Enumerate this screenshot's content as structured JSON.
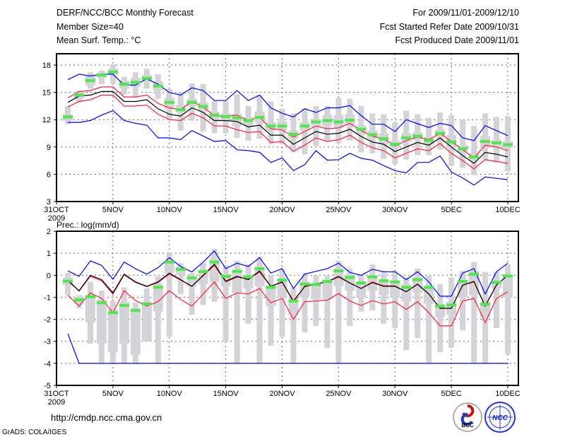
{
  "header": {
    "title": "DERF/NCC/BCC Monthly Forecast",
    "member_size": "Member Size=40",
    "temp_label": "Mean Surf. Temp.: °C",
    "for_range": "For 2009/11/01-2009/12/10",
    "started": "Fcst Started Refer Date 2009/10/31",
    "produced": "Fcst Produced Date 2009/11/01"
  },
  "footer": {
    "url": "http://cmdp.ncc.cma.gov.cn",
    "grads": "GrADS: COLA/IGES",
    "logo_bcc": "BCC",
    "logo_ncc": "NCC"
  },
  "colors": {
    "blue": "#0000ff",
    "red": "#ff1a3c",
    "black": "#000000",
    "green": "#4de84d",
    "gray": "#d3d3d8"
  },
  "chart_data": [
    {
      "type": "line",
      "title": "Mean Surf. Temp.: °C",
      "x_tick_labels": [
        "31OCT",
        "5NOV",
        "10NOV",
        "15NOV",
        "20NOV",
        "25NOV",
        "30NOV",
        "5DEC",
        "10DEC"
      ],
      "x_tick_days": [
        0,
        5,
        10,
        15,
        20,
        25,
        30,
        35,
        40
      ],
      "year_label": "2009",
      "y_ticks": [
        3,
        6,
        9,
        12,
        15,
        18
      ],
      "ylim": [
        3,
        19.25
      ],
      "grid": true,
      "days": 40,
      "series": [
        {
          "name": "ensemble_max",
          "color": "blue",
          "values": [
            16.4,
            17.0,
            16.8,
            17.0,
            17.0,
            15.8,
            15.8,
            16.5,
            15.9,
            15.0,
            14.7,
            15.5,
            15.2,
            14.1,
            14.1,
            15.2,
            14.1,
            14.7,
            13.3,
            12.7,
            12.3,
            13.2,
            12.8,
            13.3,
            13.3,
            13.55,
            12.45,
            11.5,
            11.5,
            10.7,
            12.0,
            11.55,
            11.15,
            11.6,
            11.35,
            10.0,
            9.7,
            11.35,
            10.8,
            10.25
          ]
        },
        {
          "name": "ensemble_min",
          "color": "blue",
          "values": [
            11.7,
            11.7,
            11.9,
            12.5,
            13.0,
            11.9,
            11.6,
            11.4,
            10.0,
            10.0,
            9.8,
            10.8,
            10.2,
            9.6,
            9.7,
            8.7,
            8.6,
            8.4,
            7.3,
            7.8,
            6.4,
            7.05,
            8.6,
            7.55,
            7.6,
            8.3,
            7.75,
            7.55,
            6.95,
            6.4,
            6.15,
            7.3,
            7.3,
            8.0,
            6.25,
            5.6,
            4.8,
            5.7,
            5.55,
            5.4
          ]
        },
        {
          "name": "upper_spread",
          "color": "red",
          "values": [
            14.4,
            15.1,
            15.2,
            15.6,
            15.6,
            14.5,
            14.5,
            14.7,
            13.8,
            13.3,
            13.1,
            14.0,
            13.4,
            12.4,
            12.4,
            12.5,
            11.9,
            12.3,
            11.0,
            10.9,
            10.1,
            10.7,
            11.3,
            11.0,
            11.1,
            11.6,
            10.8,
            10.2,
            9.9,
            9.1,
            9.7,
            10.1,
            9.8,
            10.5,
            9.6,
            8.7,
            7.8,
            9.2,
            9.0,
            8.6
          ]
        },
        {
          "name": "lower_spread",
          "color": "red",
          "values": [
            13.4,
            14.0,
            14.2,
            14.7,
            14.7,
            13.5,
            13.5,
            13.6,
            12.6,
            12.0,
            11.9,
            12.7,
            12.2,
            11.3,
            11.3,
            10.9,
            10.6,
            10.7,
            9.5,
            9.6,
            8.5,
            9.2,
            10.0,
            9.6,
            9.8,
            10.3,
            9.5,
            8.9,
            8.6,
            7.8,
            8.3,
            8.8,
            8.6,
            9.4,
            8.3,
            7.5,
            6.6,
            7.6,
            7.4,
            7.2
          ]
        },
        {
          "name": "ensemble_mean",
          "color": "black",
          "values": [
            13.9,
            14.6,
            14.7,
            15.1,
            15.1,
            14.0,
            14.0,
            14.2,
            13.2,
            12.6,
            12.4,
            13.3,
            12.8,
            11.9,
            11.9,
            11.8,
            11.2,
            11.4,
            10.3,
            10.3,
            9.3,
            10.0,
            10.7,
            10.4,
            10.5,
            10.95,
            10.15,
            9.55,
            9.3,
            8.5,
            9.0,
            9.5,
            9.2,
            10.0,
            9.0,
            8.05,
            7.2,
            8.4,
            8.2,
            7.9
          ]
        }
      ],
      "markers": [
        12.3,
        14.7,
        16.3,
        16.9,
        17.25,
        15.9,
        16.1,
        16.55,
        15.7,
        13.9,
        13.1,
        13.9,
        13.45,
        12.5,
        12.35,
        12.2,
        11.9,
        12.25,
        11.3,
        11.3,
        10.4,
        11.3,
        11.75,
        11.9,
        11.75,
        11.95,
        10.95,
        10.35,
        9.9,
        9.3,
        10.0,
        10.2,
        9.7,
        10.5,
        9.55,
        8.8,
        7.9,
        9.6,
        9.45,
        9.25
      ],
      "boxes": {
        "whisker_high": [
          13.5,
          15.2,
          17.2,
          17.4,
          18.1,
          16.7,
          17.2,
          17.6,
          17.0,
          15.4,
          15.0,
          16.0,
          15.9,
          14.0,
          14.0,
          14.8,
          13.5,
          14.7,
          14.0,
          13.2,
          12.7,
          13.2,
          13.5,
          13.5,
          14.4,
          14.3,
          13.5,
          12.7,
          12.6,
          11.7,
          13.0,
          12.6,
          12.2,
          12.8,
          12.5,
          12.0,
          11.3,
          12.7,
          12.3,
          12.4
        ],
        "whisker_low": [
          11.5,
          13.9,
          15.4,
          15.9,
          15.9,
          14.8,
          14.5,
          15.4,
          14.3,
          11.9,
          10.8,
          11.9,
          10.7,
          10.5,
          10.5,
          10.0,
          9.7,
          9.9,
          9.3,
          9.3,
          8.5,
          8.2,
          9.1,
          9.6,
          9.4,
          9.7,
          8.4,
          8.3,
          7.7,
          7.1,
          7.6,
          8.1,
          8.1,
          8.7,
          6.9,
          6.7,
          5.9,
          7.6,
          7.3,
          6.3
        ],
        "box_high": [
          12.6,
          15.0,
          16.8,
          17.2,
          17.6,
          16.3,
          16.6,
          16.9,
          16.2,
          14.4,
          13.6,
          14.3,
          13.9,
          12.9,
          12.7,
          12.6,
          12.3,
          12.9,
          11.7,
          11.8,
          10.8,
          11.7,
          12.1,
          12.5,
          12.5,
          12.6,
          11.4,
          10.8,
          10.5,
          9.7,
          10.5,
          10.6,
          10.1,
          10.9,
          10.3,
          9.2,
          8.3,
          10.2,
          9.8,
          9.6
        ],
        "box_low": [
          11.9,
          14.3,
          15.8,
          16.6,
          17.0,
          15.4,
          15.6,
          16.2,
          15.2,
          13.2,
          12.8,
          13.5,
          12.9,
          12.1,
          11.9,
          11.3,
          11.3,
          11.6,
          10.8,
          10.8,
          9.9,
          10.8,
          11.2,
          11.3,
          11.1,
          11.4,
          10.4,
          9.9,
          9.3,
          8.9,
          9.6,
          9.8,
          9.3,
          10.1,
          8.9,
          8.4,
          7.5,
          9.0,
          9.0,
          8.9
        ]
      }
    },
    {
      "type": "line",
      "title": "Prec.: log(mm/d)",
      "x_tick_labels": [
        "31OCT",
        "5NOV",
        "10NOV",
        "15NOV",
        "20NOV",
        "25NOV",
        "30NOV",
        "5DEC",
        "10DEC"
      ],
      "x_tick_days": [
        0,
        5,
        10,
        15,
        20,
        25,
        30,
        35,
        40
      ],
      "year_label": "2009",
      "y_ticks": [
        -5,
        -4,
        -3,
        -2,
        -1,
        0,
        1,
        2
      ],
      "ylim": [
        -5,
        2
      ],
      "grid": true,
      "days": 40,
      "series": [
        {
          "name": "ensemble_max",
          "color": "blue",
          "values": [
            0.2,
            -0.05,
            0.65,
            0.45,
            -0.18,
            0.6,
            0.3,
            0.05,
            0.35,
            0.8,
            0.4,
            0.15,
            0.6,
            1.1,
            0.3,
            0.55,
            0.4,
            0.8,
            0.1,
            0.3,
            -0.6,
            0.05,
            0.18,
            0.3,
            0.55,
            0.13,
            0.0,
            0.27,
            0.16,
            0.16,
            -0.2,
            0.16,
            -0.3,
            -0.95,
            -0.95,
            0.1,
            0.3,
            -0.85,
            0.16,
            0.55
          ]
        },
        {
          "name": "ensemble_min",
          "color": "blue",
          "values": [
            -2.65,
            -4,
            -4,
            -4,
            -4,
            -4,
            -4,
            -4,
            -4,
            -4,
            -4,
            -4,
            -4,
            -4,
            -4,
            -4,
            -4,
            -4,
            -4,
            -4,
            -4,
            -4,
            -4,
            -4,
            -4,
            -4,
            -4,
            -4,
            -4,
            -4,
            -4,
            -4,
            -4,
            -4,
            -4,
            -4,
            -4,
            -4,
            -4,
            -4
          ]
        },
        {
          "name": "upper_spread",
          "color": "red",
          "values": [
            -0.2,
            -0.72,
            -0.05,
            -0.25,
            -0.85,
            0.02,
            -0.32,
            -0.52,
            -0.32,
            0.05,
            -0.22,
            -0.5,
            -0.02,
            0.45,
            -0.3,
            -0.08,
            -0.18,
            0.15,
            -0.5,
            -0.32,
            -1.15,
            -0.52,
            -0.38,
            -0.3,
            -0.08,
            -0.35,
            -0.6,
            -0.3,
            -0.48,
            -0.48,
            -0.75,
            -0.42,
            -0.85,
            -1.5,
            -1.5,
            -0.45,
            -0.3,
            -1.4,
            -0.45,
            0.0
          ]
        },
        {
          "name": "lower_spread",
          "color": "red",
          "values": [
            -0.9,
            -1.4,
            -0.8,
            -1.05,
            -1.7,
            -0.7,
            -1.15,
            -1.4,
            -1.2,
            -0.7,
            -1.1,
            -1.4,
            -0.85,
            -0.3,
            -1.05,
            -0.8,
            -0.85,
            -0.6,
            -1.25,
            -1.05,
            -2.0,
            -1.2,
            -1.17,
            -1.13,
            -0.83,
            -1.17,
            -1.37,
            -1.15,
            -1.3,
            -1.2,
            -1.55,
            -1.2,
            -1.7,
            -2.3,
            -2.3,
            -1.17,
            -1.05,
            -2.15,
            -1.05,
            -0.75
          ]
        },
        {
          "name": "ensemble_mean",
          "color": "black",
          "values": [
            -0.25,
            -0.7,
            0.0,
            -0.2,
            -0.8,
            0.05,
            -0.3,
            -0.5,
            -0.3,
            0.1,
            -0.2,
            -0.5,
            0.0,
            0.5,
            -0.27,
            -0.05,
            -0.2,
            0.2,
            -0.5,
            -0.3,
            -1.2,
            -0.5,
            -0.4,
            -0.3,
            -0.05,
            -0.35,
            -0.6,
            -0.33,
            -0.5,
            -0.5,
            -0.75,
            -0.4,
            -0.85,
            -1.5,
            -1.5,
            -0.45,
            -0.28,
            -1.4,
            -0.43,
            0.0
          ]
        }
      ],
      "markers": [
        -0.27,
        -1.12,
        -0.97,
        -1.25,
        -1.7,
        -1.37,
        -1.6,
        -1.3,
        -0.55,
        0.6,
        0.27,
        -0.12,
        0.17,
        0.6,
        -0.05,
        0.18,
        -0.07,
        0.3,
        -0.55,
        -0.22,
        -1.17,
        -0.4,
        -0.42,
        -0.28,
        0.2,
        -0.1,
        -0.35,
        -0.07,
        -0.25,
        -0.3,
        -0.55,
        -0.2,
        -0.55,
        -1.4,
        -1.35,
        -0.28,
        0.05,
        -1.32,
        -0.32,
        -0.03
      ],
      "boxes": {
        "whisker_high": [
          0.1,
          -0.9,
          -0.3,
          -0.7,
          -1.15,
          -0.55,
          -1.25,
          -0.6,
          -0.05,
          1.0,
          0.55,
          0.1,
          0.55,
          1.2,
          0.45,
          0.65,
          0.5,
          0.85,
          0.0,
          0.25,
          -0.6,
          0.1,
          0.0,
          0.0,
          0.65,
          0.3,
          0.0,
          0.5,
          0.2,
          0.2,
          -0.1,
          0.3,
          0.0,
          -0.4,
          -0.1,
          0.2,
          0.6,
          0.15,
          0.15,
          0.5
        ],
        "whisker_low": [
          -0.9,
          -1.5,
          -3.1,
          -4,
          -4,
          -4,
          -4,
          -3,
          -4,
          -2.8,
          -0.85,
          -1.8,
          -1.35,
          -1.2,
          -3,
          -4,
          -2.2,
          -4,
          -3.2,
          -2.8,
          -4,
          -2.6,
          -2.3,
          -3.3,
          -4,
          -2.3,
          -1.65,
          -1.6,
          -2.2,
          -2.4,
          -3.4,
          -2.85,
          -4,
          -3.5,
          -3.3,
          -2.5,
          -4,
          -4,
          -2.4,
          -3.6
        ],
        "box_high": [
          -0.1,
          -1.0,
          -0.9,
          -1.1,
          -1.55,
          -1.2,
          -1.5,
          -1.2,
          -0.4,
          0.7,
          0.4,
          -0.05,
          0.25,
          0.8,
          0.05,
          0.25,
          0.0,
          0.4,
          -0.5,
          -0.15,
          -1.0,
          -0.3,
          -0.4,
          -0.2,
          0.3,
          0.0,
          -0.3,
          0.0,
          -0.2,
          -0.3,
          -0.4,
          -0.1,
          -0.5,
          -1.3,
          -1.2,
          -0.2,
          0.2,
          -1.2,
          -0.3,
          0.0
        ],
        "box_low": [
          -0.45,
          -1.3,
          -2.15,
          -3.1,
          -3.5,
          -3.1,
          -3.6,
          -3.0,
          -1.65,
          0.1,
          0.05,
          -0.5,
          -0.4,
          -0.3,
          -0.5,
          -0.8,
          -0.6,
          -0.5,
          -1.4,
          -1.0,
          -1.8,
          -1.0,
          -1.1,
          -1.1,
          -0.5,
          -0.7,
          -1.0,
          -0.7,
          -0.9,
          -1.0,
          -1.2,
          -0.8,
          -1.3,
          -1.9,
          -1.8,
          -1.0,
          -0.9,
          -1.9,
          -0.6,
          -1.0
        ]
      }
    }
  ]
}
